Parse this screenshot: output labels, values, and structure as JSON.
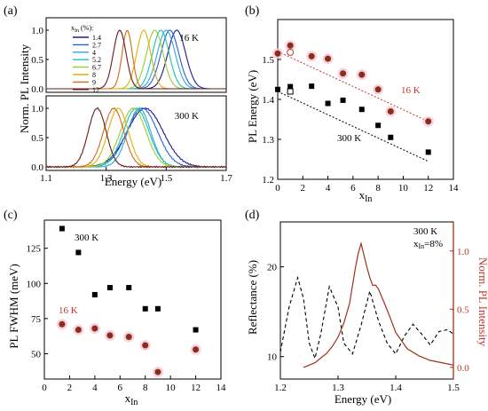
{
  "chart_data": [
    {
      "panel": "(a)",
      "type": "line",
      "xlabel": "Energy (eV)",
      "ylabel": "Norm. PL Intensity",
      "xlim": [
        1.1,
        1.7
      ],
      "xticks": [
        "1.1",
        "1.3",
        "1.5",
        "1.7"
      ],
      "yticks": [
        "0.0",
        "0.5",
        "1.0"
      ],
      "legend_title": "x",
      "legend_title_sub": "In",
      "legend_title_suffix": " (%):",
      "legend_placement": "top-left",
      "subplots": [
        {
          "label": "16 K",
          "series": [
            {
              "name": "1.4",
              "color": "#1a1a8c",
              "peak": 1.535,
              "fwhm": 0.07
            },
            {
              "name": "2.7",
              "color": "#2a5fd1",
              "peak": 1.512,
              "fwhm": 0.07
            },
            {
              "name": "4",
              "color": "#2aa8e0",
              "peak": 1.5,
              "fwhm": 0.07
            },
            {
              "name": "5.2",
              "color": "#20c0b0",
              "peak": 1.482,
              "fwhm": 0.065
            },
            {
              "name": "6.7",
              "color": "#9acd32",
              "peak": 1.462,
              "fwhm": 0.065
            },
            {
              "name": "8",
              "color": "#e0b000",
              "peak": 1.425,
              "fwhm": 0.055
            },
            {
              "name": "9",
              "color": "#d2691e",
              "peak": 1.37,
              "fwhm": 0.04
            },
            {
              "name": "12",
              "color": "#6b1a1a",
              "peak": 1.345,
              "fwhm": 0.05
            }
          ]
        },
        {
          "label": "300 K",
          "series": [
            {
              "name": "1.4",
              "color": "#1a1a8c",
              "peak": 1.43,
              "fwhm": 0.14
            },
            {
              "name": "2.7",
              "color": "#2a5fd1",
              "peak": 1.42,
              "fwhm": 0.12
            },
            {
              "name": "4",
              "color": "#2aa8e0",
              "peak": 1.41,
              "fwhm": 0.09
            },
            {
              "name": "5.2",
              "color": "#20c0b0",
              "peak": 1.4,
              "fwhm": 0.1
            },
            {
              "name": "6.7",
              "color": "#9acd32",
              "peak": 1.39,
              "fwhm": 0.1
            },
            {
              "name": "8",
              "color": "#e0b000",
              "peak": 1.34,
              "fwhm": 0.08
            },
            {
              "name": "9",
              "color": "#d2691e",
              "peak": 1.325,
              "fwhm": 0.08
            },
            {
              "name": "12",
              "color": "#6b1a1a",
              "peak": 1.27,
              "fwhm": 0.07
            }
          ]
        }
      ]
    },
    {
      "panel": "(b)",
      "type": "scatter",
      "xlabel": "x",
      "xlabel_sub": "In",
      "ylabel": "PL Energy (eV)",
      "xlim": [
        0,
        14
      ],
      "ylim": [
        1.2,
        1.6
      ],
      "xticks": [
        "0",
        "2",
        "4",
        "6",
        "8",
        "10",
        "12",
        "14"
      ],
      "yticks": [
        "1.2",
        "1.3",
        "1.4",
        "1.5"
      ],
      "series": [
        {
          "name": "16 K",
          "color": "#8b2d1a",
          "x": [
            0,
            1,
            2.7,
            4,
            5.2,
            6.7,
            8,
            9,
            12
          ],
          "y": [
            1.515,
            1.535,
            1.508,
            1.502,
            1.465,
            1.462,
            1.425,
            1.37,
            1.345
          ]
        },
        {
          "name": "300 K",
          "color": "#000000",
          "x": [
            0,
            1,
            2.7,
            4,
            5.2,
            6.7,
            8,
            9,
            12
          ],
          "y": [
            1.425,
            1.432,
            1.433,
            1.39,
            1.398,
            1.375,
            1.335,
            1.305,
            1.268
          ]
        }
      ],
      "open_points": [
        {
          "x": 1,
          "y": 1.518,
          "color": "#c0392b"
        },
        {
          "x": 1,
          "y": 1.42,
          "color": "#000000"
        }
      ],
      "fits": [
        {
          "color": "#c0392b",
          "x": [
            0,
            12
          ],
          "y": [
            1.52,
            1.345
          ]
        },
        {
          "color": "#000000",
          "x": [
            0,
            12
          ],
          "y": [
            1.42,
            1.245
          ]
        }
      ]
    },
    {
      "panel": "(c)",
      "type": "scatter",
      "xlabel": "x",
      "xlabel_sub": "In",
      "ylabel": "PL FWHM (meV)",
      "xlim": [
        0,
        14
      ],
      "ylim": [
        32,
        145
      ],
      "xticks": [
        "0",
        "2",
        "4",
        "6",
        "8",
        "10",
        "12",
        "14"
      ],
      "yticks": [
        "50",
        "75",
        "100",
        "125"
      ],
      "series": [
        {
          "name": "300 K",
          "color": "#000000",
          "x": [
            1.4,
            2.7,
            4,
            5.2,
            6.7,
            8,
            9,
            12
          ],
          "y": [
            139,
            122,
            92,
            97,
            97,
            82,
            82,
            67
          ]
        },
        {
          "name": "16 K",
          "color": "#8b2d1a",
          "x": [
            1.4,
            2.7,
            4,
            5.2,
            6.7,
            8,
            9,
            12
          ],
          "y": [
            71,
            67,
            68,
            63,
            62,
            56,
            37,
            53
          ]
        }
      ]
    },
    {
      "panel": "(d)",
      "type": "line",
      "xlabel": "Energy (eV)",
      "ylabel": "Reflectance (%)",
      "ylabel_right": "Norm. PL Intensity",
      "xlim": [
        1.2,
        1.5
      ],
      "ylim": [
        7.5,
        25
      ],
      "ylim_right": [
        -0.1,
        1.25
      ],
      "xticks": [
        "1.2",
        "1.3",
        "1.4",
        "1.5"
      ],
      "yticks": [
        "10",
        "20"
      ],
      "yticks_right": [
        "0.0",
        "0.5",
        "1.0"
      ],
      "annotation_line1": "300 K",
      "annotation_line2_prefix": "x",
      "annotation_line2_sub": "In",
      "annotation_line2_suffix": "=8%",
      "series": [
        {
          "name": "Reflectance",
          "color": "#000000",
          "style": "dashed",
          "x": [
            1.2,
            1.215,
            1.23,
            1.24,
            1.25,
            1.26,
            1.27,
            1.285,
            1.3,
            1.31,
            1.325,
            1.34,
            1.355,
            1.37,
            1.385,
            1.4,
            1.415,
            1.43,
            1.445,
            1.46,
            1.475,
            1.49,
            1.5
          ],
          "y": [
            10.5,
            15.5,
            18.8,
            16.5,
            11.5,
            9.8,
            12.5,
            17.8,
            15.5,
            11.5,
            10.3,
            13.5,
            17.3,
            14.0,
            11.5,
            10.3,
            12.3,
            13.6,
            12.5,
            11.3,
            12.8,
            13.0,
            12.5
          ]
        },
        {
          "name": "PL",
          "color": "#a0311c",
          "style": "solid",
          "x": [
            1.24,
            1.25,
            1.26,
            1.27,
            1.28,
            1.29,
            1.3,
            1.31,
            1.32,
            1.33,
            1.335,
            1.34,
            1.345,
            1.35,
            1.355,
            1.36,
            1.365,
            1.37,
            1.38,
            1.39,
            1.4,
            1.42,
            1.44,
            1.46,
            1.48,
            1.5
          ],
          "y": [
            0.0,
            0.02,
            0.04,
            0.08,
            0.12,
            0.18,
            0.26,
            0.38,
            0.55,
            0.85,
            0.97,
            1.05,
            0.95,
            0.86,
            0.78,
            0.72,
            0.72,
            0.68,
            0.55,
            0.42,
            0.3,
            0.16,
            0.1,
            0.06,
            0.04,
            0.02
          ]
        }
      ]
    }
  ]
}
